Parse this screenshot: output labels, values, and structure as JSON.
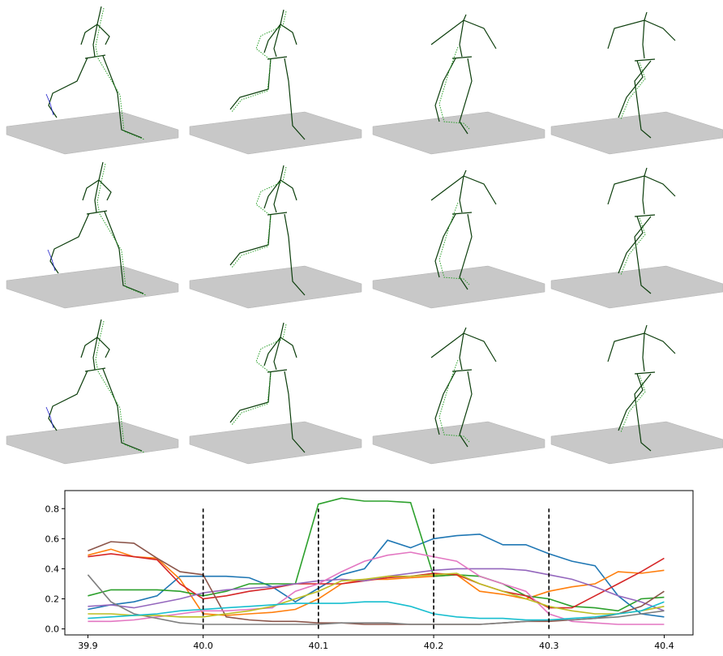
{
  "chart_data": {
    "type": "line",
    "x": [
      39.9,
      39.92,
      39.94,
      39.96,
      39.98,
      40.0,
      40.02,
      40.04,
      40.06,
      40.08,
      40.1,
      40.12,
      40.14,
      40.16,
      40.18,
      40.2,
      40.22,
      40.24,
      40.26,
      40.28,
      40.3,
      40.32,
      40.34,
      40.36,
      40.38,
      40.4
    ],
    "series": [
      {
        "color": "#1f77b4",
        "values": [
          0.13,
          0.16,
          0.18,
          0.22,
          0.35,
          0.35,
          0.35,
          0.34,
          0.28,
          0.18,
          0.27,
          0.36,
          0.4,
          0.59,
          0.54,
          0.6,
          0.62,
          0.63,
          0.56,
          0.56,
          0.5,
          0.45,
          0.42,
          0.22,
          0.1,
          0.08
        ]
      },
      {
        "color": "#ff7f0e",
        "values": [
          0.49,
          0.53,
          0.48,
          0.47,
          0.33,
          0.1,
          0.09,
          0.1,
          0.11,
          0.13,
          0.2,
          0.3,
          0.33,
          0.33,
          0.34,
          0.35,
          0.36,
          0.25,
          0.23,
          0.2,
          0.25,
          0.28,
          0.3,
          0.38,
          0.37,
          0.39
        ]
      },
      {
        "color": "#2ca02c",
        "values": [
          0.22,
          0.26,
          0.26,
          0.26,
          0.25,
          0.22,
          0.25,
          0.3,
          0.3,
          0.3,
          0.83,
          0.87,
          0.85,
          0.85,
          0.84,
          0.35,
          0.36,
          0.35,
          0.3,
          0.22,
          0.2,
          0.15,
          0.14,
          0.12,
          0.2,
          0.21
        ]
      },
      {
        "color": "#d62728",
        "values": [
          0.48,
          0.5,
          0.48,
          0.46,
          0.3,
          0.2,
          0.22,
          0.25,
          0.27,
          0.3,
          0.3,
          0.3,
          0.32,
          0.34,
          0.35,
          0.37,
          0.36,
          0.3,
          0.25,
          0.22,
          0.14,
          0.14,
          0.22,
          0.3,
          0.38,
          0.47
        ]
      },
      {
        "color": "#9467bd",
        "values": [
          0.15,
          0.16,
          0.14,
          0.17,
          0.2,
          0.24,
          0.26,
          0.27,
          0.28,
          0.3,
          0.32,
          0.33,
          0.32,
          0.35,
          0.37,
          0.39,
          0.4,
          0.4,
          0.4,
          0.39,
          0.36,
          0.33,
          0.28,
          0.22,
          0.18,
          0.12
        ]
      },
      {
        "color": "#8c564b",
        "values": [
          0.52,
          0.58,
          0.57,
          0.47,
          0.38,
          0.36,
          0.08,
          0.06,
          0.05,
          0.05,
          0.04,
          0.04,
          0.03,
          0.03,
          0.03,
          0.03,
          0.03,
          0.03,
          0.04,
          0.05,
          0.05,
          0.06,
          0.07,
          0.1,
          0.15,
          0.25
        ]
      },
      {
        "color": "#e377c2",
        "values": [
          0.05,
          0.05,
          0.06,
          0.08,
          0.1,
          0.12,
          0.12,
          0.13,
          0.14,
          0.25,
          0.3,
          0.38,
          0.45,
          0.49,
          0.51,
          0.48,
          0.45,
          0.35,
          0.3,
          0.25,
          0.1,
          0.05,
          0.04,
          0.03,
          0.03,
          0.03
        ]
      },
      {
        "color": "#7f7f7f",
        "values": [
          0.36,
          0.18,
          0.1,
          0.07,
          0.04,
          0.03,
          0.03,
          0.03,
          0.03,
          0.03,
          0.03,
          0.04,
          0.04,
          0.04,
          0.03,
          0.03,
          0.03,
          0.03,
          0.04,
          0.05,
          0.06,
          0.06,
          0.07,
          0.08,
          0.1,
          0.12
        ]
      },
      {
        "color": "#bcbd22",
        "values": [
          0.1,
          0.1,
          0.09,
          0.09,
          0.08,
          0.08,
          0.1,
          0.12,
          0.15,
          0.2,
          0.25,
          0.32,
          0.33,
          0.35,
          0.35,
          0.36,
          0.37,
          0.3,
          0.25,
          0.2,
          0.15,
          0.12,
          0.1,
          0.1,
          0.12,
          0.15
        ]
      },
      {
        "color": "#17becf",
        "values": [
          0.07,
          0.08,
          0.09,
          0.1,
          0.12,
          0.13,
          0.14,
          0.15,
          0.16,
          0.17,
          0.17,
          0.17,
          0.18,
          0.18,
          0.15,
          0.1,
          0.08,
          0.07,
          0.07,
          0.06,
          0.06,
          0.07,
          0.08,
          0.1,
          0.12,
          0.18
        ]
      }
    ],
    "vlines": {
      "x": [
        40.0,
        40.1,
        40.2,
        40.3
      ],
      "ymin": 0,
      "ymax": 0.8,
      "color": "#000000"
    },
    "xlim": [
      39.88,
      40.425
    ],
    "ylim": [
      -0.04,
      0.92
    ],
    "xticks": [
      39.9,
      {
        "value": 40.0,
        "label": "40.0"
      },
      40.1,
      40.2,
      40.3,
      40.4
    ],
    "yticks": [
      {
        "value": 0,
        "label": "0.0"
      },
      0.2,
      0.4,
      0.6,
      0.8
    ],
    "grid": false
  }
}
